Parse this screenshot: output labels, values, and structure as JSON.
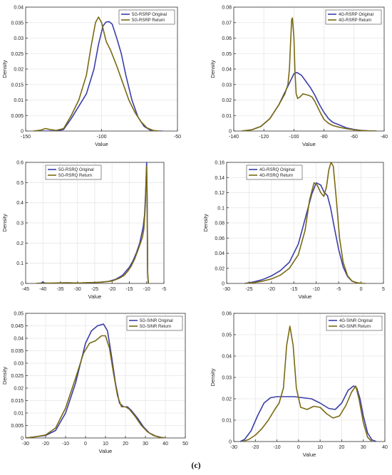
{
  "caption": "(c)",
  "colors": {
    "original": "#3b3fa8",
    "return": "#7a6a12",
    "grid": "#e6e6e6",
    "axis": "#333333"
  },
  "chart_data": [
    {
      "type": "line",
      "xlabel": "Value",
      "ylabel": "Density",
      "xlim": [
        -150,
        -50
      ],
      "ylim": [
        0,
        0.04
      ],
      "xticks": [
        -150,
        -100,
        -50
      ],
      "yticks": [
        0,
        0.005,
        0.01,
        0.015,
        0.02,
        0.025,
        0.03,
        0.035,
        0.04
      ],
      "grid": true,
      "legend": "top-right",
      "series": [
        {
          "name": "5G-RSRP Original",
          "color_key": "original",
          "x": [
            -140,
            -130,
            -125,
            -120,
            -115,
            -110,
            -105,
            -102,
            -99,
            -97,
            -95,
            -93,
            -90,
            -87,
            -84,
            -80,
            -76,
            -72,
            -68,
            -65,
            -60
          ],
          "y": [
            0,
            0,
            0.0005,
            0.004,
            0.008,
            0.012,
            0.02,
            0.028,
            0.034,
            0.0352,
            0.0353,
            0.0345,
            0.03,
            0.025,
            0.018,
            0.01,
            0.0045,
            0.0015,
            0.0003,
            0,
            0
          ]
        },
        {
          "name": "5G-RSRP Return",
          "color_key": "return",
          "x": [
            -145,
            -140,
            -137,
            -134,
            -130,
            -125,
            -120,
            -115,
            -110,
            -107,
            -104,
            -102,
            -100,
            -97,
            -94,
            -90,
            -86,
            -82,
            -78,
            -74,
            -70,
            -66,
            -62
          ],
          "y": [
            0,
            0.0003,
            0.0008,
            0.0005,
            0.0002,
            0.0008,
            0.005,
            0.01,
            0.018,
            0.027,
            0.035,
            0.0368,
            0.035,
            0.029,
            0.026,
            0.021,
            0.0155,
            0.01,
            0.006,
            0.003,
            0.001,
            0.0002,
            0
          ]
        }
      ]
    },
    {
      "type": "line",
      "xlabel": "Value",
      "ylabel": "Density",
      "xlim": [
        -140,
        -40
      ],
      "ylim": [
        0,
        0.08
      ],
      "xticks": [
        -140,
        -120,
        -100,
        -80,
        -60,
        -40
      ],
      "yticks": [
        0,
        0.01,
        0.02,
        0.03,
        0.04,
        0.05,
        0.06,
        0.07,
        0.08
      ],
      "grid": true,
      "legend": "top-right",
      "series": [
        {
          "name": "4G-RSRP Original",
          "color_key": "original",
          "x": [
            -135,
            -128,
            -122,
            -116,
            -110,
            -106,
            -103,
            -100,
            -98,
            -95,
            -92,
            -89,
            -86,
            -83,
            -80,
            -77,
            -74,
            -70,
            -65,
            -60,
            -55,
            -50,
            -45
          ],
          "y": [
            0,
            0.0008,
            0.003,
            0.008,
            0.017,
            0.025,
            0.031,
            0.037,
            0.0378,
            0.036,
            0.032,
            0.028,
            0.023,
            0.017,
            0.012,
            0.008,
            0.0055,
            0.004,
            0.002,
            0.001,
            0.0004,
            0.0001,
            0
          ]
        },
        {
          "name": "4G-RSRP Return",
          "color_key": "return",
          "x": [
            -135,
            -128,
            -122,
            -116,
            -110,
            -106,
            -104,
            -103,
            -102,
            -101.5,
            -101,
            -100,
            -99.3,
            -98.5,
            -97.5,
            -96,
            -94,
            -92,
            -90,
            -88,
            -86,
            -84,
            -82,
            -80,
            -77,
            -74,
            -70,
            -65,
            -60,
            -55,
            -50,
            -45
          ],
          "y": [
            0,
            0.0008,
            0.003,
            0.008,
            0.017,
            0.024,
            0.03,
            0.04,
            0.062,
            0.072,
            0.073,
            0.06,
            0.038,
            0.024,
            0.021,
            0.022,
            0.024,
            0.0235,
            0.023,
            0.022,
            0.019,
            0.015,
            0.011,
            0.0075,
            0.005,
            0.0035,
            0.0025,
            0.0015,
            0.0008,
            0.0003,
            0.0001,
            0
          ]
        }
      ]
    },
    {
      "type": "line",
      "xlabel": "Value",
      "ylabel": "Density",
      "xlim": [
        -45,
        -5
      ],
      "ylim": [
        0,
        0.6
      ],
      "xticks": [
        -45,
        -40,
        -35,
        -30,
        -25,
        -20,
        -15,
        -10,
        -5
      ],
      "yticks": [
        0,
        0.1,
        0.2,
        0.3,
        0.4,
        0.5,
        0.6
      ],
      "grid": true,
      "legend": "top-left",
      "series": [
        {
          "name": "5G-RSRQ Original",
          "color_key": "original",
          "x": [
            -42,
            -40.5,
            -40,
            -39.5,
            -37,
            -30,
            -25,
            -21,
            -19,
            -17,
            -15,
            -14,
            -13,
            -12,
            -11.5,
            -11,
            -10.6,
            -10.3,
            -10.1,
            -10,
            -9.85,
            -9.7,
            -9.5
          ],
          "y": [
            0,
            0.002,
            0.008,
            0.002,
            0,
            0.002,
            0.004,
            0.01,
            0.02,
            0.04,
            0.08,
            0.11,
            0.15,
            0.2,
            0.24,
            0.28,
            0.34,
            0.45,
            0.55,
            0.6,
            0.4,
            0.05,
            0
          ]
        },
        {
          "name": "5G-RSRQ Return",
          "color_key": "return",
          "x": [
            -42,
            -37,
            -33,
            -30,
            -27,
            -23,
            -20,
            -18,
            -16.5,
            -15.5,
            -14.5,
            -13.5,
            -12.5,
            -11.8,
            -11.2,
            -10.8,
            -10.4,
            -10.2,
            -10,
            -9.85,
            -9.7,
            -9.5
          ],
          "y": [
            0,
            0.002,
            0.004,
            0.002,
            0.004,
            0.006,
            0.012,
            0.025,
            0.04,
            0.06,
            0.085,
            0.12,
            0.165,
            0.2,
            0.23,
            0.27,
            0.38,
            0.48,
            0.58,
            0.42,
            0.05,
            0
          ]
        }
      ]
    },
    {
      "type": "line",
      "xlabel": "Value",
      "ylabel": "Density",
      "xlim": [
        -30,
        5
      ],
      "ylim": [
        0,
        0.16
      ],
      "xticks": [
        -30,
        -25,
        -20,
        -15,
        -10,
        -5,
        0,
        5
      ],
      "yticks": [
        0,
        0.02,
        0.04,
        0.06,
        0.08,
        0.1,
        0.12,
        0.14,
        0.16
      ],
      "grid": true,
      "legend": "top-left",
      "series": [
        {
          "name": "4G-RSRQ Original",
          "color_key": "original",
          "x": [
            -26,
            -24,
            -22,
            -20,
            -18,
            -16,
            -14,
            -12.5,
            -11,
            -10,
            -9,
            -8.2,
            -7.5,
            -6.8,
            -6,
            -5,
            -4,
            -3,
            -2,
            -1,
            0
          ],
          "y": [
            0,
            0.002,
            0.005,
            0.01,
            0.017,
            0.028,
            0.052,
            0.085,
            0.118,
            0.133,
            0.13,
            0.12,
            0.116,
            0.1,
            0.075,
            0.045,
            0.022,
            0.009,
            0.003,
            0.001,
            0
          ]
        },
        {
          "name": "4G-RSRQ Return",
          "color_key": "return",
          "x": [
            -26,
            -24,
            -22,
            -20,
            -18,
            -16,
            -14,
            -12.5,
            -11.5,
            -10.5,
            -9.8,
            -9,
            -8.3,
            -7.7,
            -7.2,
            -6.7,
            -6.2,
            -5.5,
            -4.8,
            -4,
            -3,
            -2,
            -1,
            0,
            1
          ],
          "y": [
            0,
            0.001,
            0.003,
            0.006,
            0.011,
            0.02,
            0.038,
            0.07,
            0.11,
            0.133,
            0.13,
            0.12,
            0.115,
            0.128,
            0.15,
            0.16,
            0.155,
            0.11,
            0.06,
            0.028,
            0.01,
            0.003,
            0.001,
            0.0003,
            0
          ]
        }
      ]
    },
    {
      "type": "line",
      "xlabel": "Value",
      "ylabel": "Density",
      "xlim": [
        -30,
        50
      ],
      "ylim": [
        0,
        0.05
      ],
      "xticks": [
        -30,
        -20,
        -10,
        0,
        10,
        20,
        30,
        40,
        50
      ],
      "yticks": [
        0,
        0.005,
        0.01,
        0.015,
        0.02,
        0.025,
        0.03,
        0.035,
        0.04,
        0.045,
        0.05
      ],
      "grid": true,
      "legend": "top-right",
      "series": [
        {
          "name": "5G-SINR Original",
          "color_key": "original",
          "x": [
            -30,
            -25,
            -20,
            -15,
            -10,
            -5,
            0,
            3,
            6,
            9,
            11,
            13,
            15,
            17,
            19,
            21,
            23,
            26,
            29,
            32,
            35,
            38,
            40
          ],
          "y": [
            0,
            0.0005,
            0.001,
            0.003,
            0.01,
            0.022,
            0.038,
            0.043,
            0.045,
            0.0457,
            0.043,
            0.033,
            0.022,
            0.014,
            0.0125,
            0.0125,
            0.011,
            0.008,
            0.0045,
            0.002,
            0.0008,
            0.0002,
            0
          ]
        },
        {
          "name": "5G-SINR Return",
          "color_key": "return",
          "x": [
            -30,
            -25,
            -20,
            -15,
            -10,
            -5,
            -1,
            2,
            5,
            8,
            10,
            12,
            14,
            16,
            18,
            20,
            22,
            25,
            28,
            31,
            34,
            37,
            40
          ],
          "y": [
            0,
            0.0005,
            0.0012,
            0.004,
            0.012,
            0.024,
            0.034,
            0.038,
            0.039,
            0.041,
            0.041,
            0.036,
            0.026,
            0.017,
            0.0125,
            0.0125,
            0.0115,
            0.0085,
            0.005,
            0.0025,
            0.001,
            0.0003,
            0
          ]
        }
      ]
    },
    {
      "type": "line",
      "xlabel": "Value",
      "ylabel": "Density",
      "xlim": [
        -30,
        40
      ],
      "ylim": [
        0,
        0.06
      ],
      "xticks": [
        -30,
        -20,
        -10,
        0,
        10,
        20,
        30,
        40
      ],
      "yticks": [
        0,
        0.01,
        0.02,
        0.03,
        0.04,
        0.05,
        0.06
      ],
      "grid": true,
      "legend": "top-right",
      "series": [
        {
          "name": "4G-SINR Original",
          "color_key": "original",
          "x": [
            -27,
            -25,
            -22,
            -19,
            -16,
            -13,
            -10,
            -6,
            -2,
            2,
            6,
            10,
            14,
            17,
            20,
            23,
            25.5,
            27,
            28.5,
            30,
            32,
            34,
            36
          ],
          "y": [
            0,
            0.001,
            0.005,
            0.012,
            0.018,
            0.0205,
            0.021,
            0.021,
            0.021,
            0.0205,
            0.02,
            0.018,
            0.0155,
            0.015,
            0.018,
            0.024,
            0.026,
            0.025,
            0.02,
            0.012,
            0.004,
            0.0008,
            0
          ]
        },
        {
          "name": "4G-SINR Return",
          "color_key": "return",
          "x": [
            -26,
            -23,
            -20,
            -17,
            -14,
            -11,
            -9,
            -7,
            -5.5,
            -4,
            -2.5,
            -1,
            1,
            4,
            7,
            10,
            13,
            16,
            19,
            22,
            24.5,
            26.5,
            28,
            30,
            32,
            34
          ],
          "y": [
            0,
            0.001,
            0.003,
            0.006,
            0.01,
            0.015,
            0.018,
            0.025,
            0.045,
            0.054,
            0.045,
            0.025,
            0.016,
            0.015,
            0.0165,
            0.016,
            0.013,
            0.011,
            0.012,
            0.017,
            0.023,
            0.026,
            0.02,
            0.009,
            0.002,
            0
          ]
        }
      ]
    }
  ]
}
